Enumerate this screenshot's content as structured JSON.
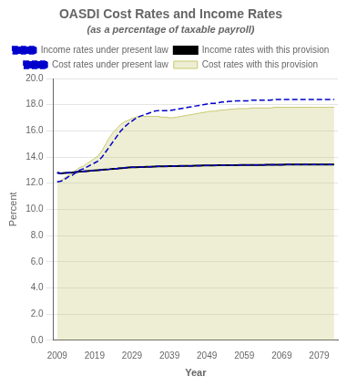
{
  "chart_data": {
    "type": "line",
    "title": "OASDI Cost Rates and Income Rates",
    "subtitle": "(as a percentage of taxable payroll)",
    "xlabel": "Year",
    "ylabel": "Percent",
    "xlim": [
      2008,
      2084
    ],
    "ylim": [
      0.0,
      20.0
    ],
    "xticks": [
      2009,
      2019,
      2029,
      2039,
      2049,
      2059,
      2069,
      2079
    ],
    "yticks": [
      {
        "value": 0.0,
        "label": "0.0"
      },
      {
        "value": 2.0,
        "label": "2.0"
      },
      {
        "value": 4.0,
        "label": "4.0"
      },
      {
        "value": 6.0,
        "label": "6.0"
      },
      {
        "value": 8.0,
        "label": "8.0"
      },
      {
        "value": 10.0,
        "label": "10.0"
      },
      {
        "value": 12.0,
        "label": "12.0"
      },
      {
        "value": 14.0,
        "label": "14.0"
      },
      {
        "value": 16.0,
        "label": "16.0"
      },
      {
        "value": 18.0,
        "label": "18.0"
      },
      {
        "value": 20.0,
        "label": "20.0"
      }
    ],
    "grid": "y",
    "legend": "top",
    "x": [
      2009,
      2010,
      2011,
      2012,
      2013,
      2014,
      2015,
      2016,
      2017,
      2018,
      2019,
      2020,
      2021,
      2022,
      2023,
      2024,
      2025,
      2026,
      2027,
      2028,
      2029,
      2030,
      2031,
      2032,
      2033,
      2034,
      2035,
      2036,
      2037,
      2038,
      2039,
      2040,
      2041,
      2042,
      2043,
      2044,
      2045,
      2046,
      2047,
      2048,
      2049,
      2050,
      2051,
      2052,
      2053,
      2054,
      2055,
      2056,
      2057,
      2058,
      2059,
      2060,
      2061,
      2062,
      2063,
      2064,
      2065,
      2066,
      2067,
      2068,
      2069,
      2070,
      2071,
      2072,
      2073,
      2074,
      2075,
      2076,
      2077,
      2078,
      2079,
      2080,
      2081,
      2082,
      2083
    ],
    "series": [
      {
        "name": "Cost rates with this provision",
        "type": "area",
        "color": "#c8c870",
        "line_style": "solid",
        "values": [
          12.1,
          12.2,
          12.4,
          12.6,
          12.7,
          13.0,
          13.2,
          13.3,
          13.5,
          13.7,
          13.9,
          14.1,
          14.5,
          15.0,
          15.5,
          15.9,
          16.2,
          16.5,
          16.7,
          16.8,
          16.95,
          17.05,
          17.1,
          17.1,
          17.1,
          17.1,
          17.1,
          17.1,
          17.05,
          17.05,
          17.0,
          17.0,
          17.05,
          17.1,
          17.15,
          17.2,
          17.25,
          17.3,
          17.35,
          17.4,
          17.45,
          17.5,
          17.5,
          17.55,
          17.6,
          17.6,
          17.65,
          17.65,
          17.7,
          17.7,
          17.7,
          17.7,
          17.75,
          17.75,
          17.75,
          17.75,
          17.75,
          17.75,
          17.8,
          17.8,
          17.8,
          17.8,
          17.8,
          17.8,
          17.8,
          17.8,
          17.8,
          17.8,
          17.8,
          17.8,
          17.8,
          17.8,
          17.8,
          17.8,
          17.8
        ]
      },
      {
        "name": "Cost rates under present law",
        "type": "line",
        "color": "#0000cc",
        "line_style": "dashed",
        "values": [
          12.1,
          12.15,
          12.3,
          12.5,
          12.6,
          12.8,
          13.0,
          13.1,
          13.25,
          13.4,
          13.55,
          13.7,
          14.0,
          14.4,
          14.8,
          15.2,
          15.6,
          16.0,
          16.3,
          16.55,
          16.75,
          16.95,
          17.1,
          17.2,
          17.3,
          17.4,
          17.5,
          17.55,
          17.55,
          17.55,
          17.55,
          17.6,
          17.65,
          17.7,
          17.75,
          17.8,
          17.85,
          17.9,
          17.95,
          18.0,
          18.05,
          18.1,
          18.1,
          18.15,
          18.2,
          18.2,
          18.25,
          18.25,
          18.3,
          18.3,
          18.3,
          18.3,
          18.35,
          18.35,
          18.35,
          18.35,
          18.35,
          18.35,
          18.4,
          18.4,
          18.4,
          18.4,
          18.4,
          18.4,
          18.4,
          18.4,
          18.4,
          18.4,
          18.4,
          18.4,
          18.4,
          18.4,
          18.4,
          18.4,
          18.4
        ]
      },
      {
        "name": "Income rates with this provision",
        "type": "line",
        "color": "#000000",
        "line_style": "solid",
        "values": [
          12.8,
          12.75,
          12.78,
          12.8,
          12.82,
          12.85,
          12.88,
          12.9,
          12.93,
          12.95,
          12.98,
          13.0,
          13.02,
          13.05,
          13.07,
          13.1,
          13.12,
          13.15,
          13.17,
          13.2,
          13.22,
          13.22,
          13.23,
          13.24,
          13.25,
          13.26,
          13.27,
          13.28,
          13.28,
          13.29,
          13.3,
          13.3,
          13.31,
          13.32,
          13.32,
          13.33,
          13.33,
          13.34,
          13.34,
          13.35,
          13.35,
          13.36,
          13.36,
          13.37,
          13.37,
          13.37,
          13.38,
          13.38,
          13.38,
          13.39,
          13.39,
          13.39,
          13.4,
          13.4,
          13.4,
          13.4,
          13.41,
          13.41,
          13.41,
          13.41,
          13.41,
          13.42,
          13.42,
          13.42,
          13.42,
          13.42,
          13.42,
          13.42,
          13.42,
          13.42,
          13.42,
          13.42,
          13.42,
          13.42,
          13.42
        ]
      },
      {
        "name": "Income rates under present law",
        "type": "line",
        "color": "#0000cc",
        "line_style": "dashed",
        "values": [
          12.8,
          12.75,
          12.78,
          12.8,
          12.82,
          12.85,
          12.88,
          12.9,
          12.93,
          12.95,
          12.98,
          13.0,
          13.02,
          13.05,
          13.07,
          13.1,
          13.12,
          13.15,
          13.17,
          13.2,
          13.22,
          13.22,
          13.23,
          13.24,
          13.25,
          13.26,
          13.27,
          13.28,
          13.28,
          13.29,
          13.3,
          13.3,
          13.31,
          13.32,
          13.32,
          13.33,
          13.33,
          13.34,
          13.34,
          13.35,
          13.35,
          13.36,
          13.36,
          13.37,
          13.37,
          13.37,
          13.38,
          13.38,
          13.38,
          13.39,
          13.39,
          13.39,
          13.4,
          13.4,
          13.4,
          13.4,
          13.41,
          13.41,
          13.41,
          13.41,
          13.41,
          13.42,
          13.42,
          13.42,
          13.42,
          13.42,
          13.42,
          13.42,
          13.42,
          13.42,
          13.42,
          13.42,
          13.42,
          13.42,
          13.42
        ]
      }
    ]
  }
}
